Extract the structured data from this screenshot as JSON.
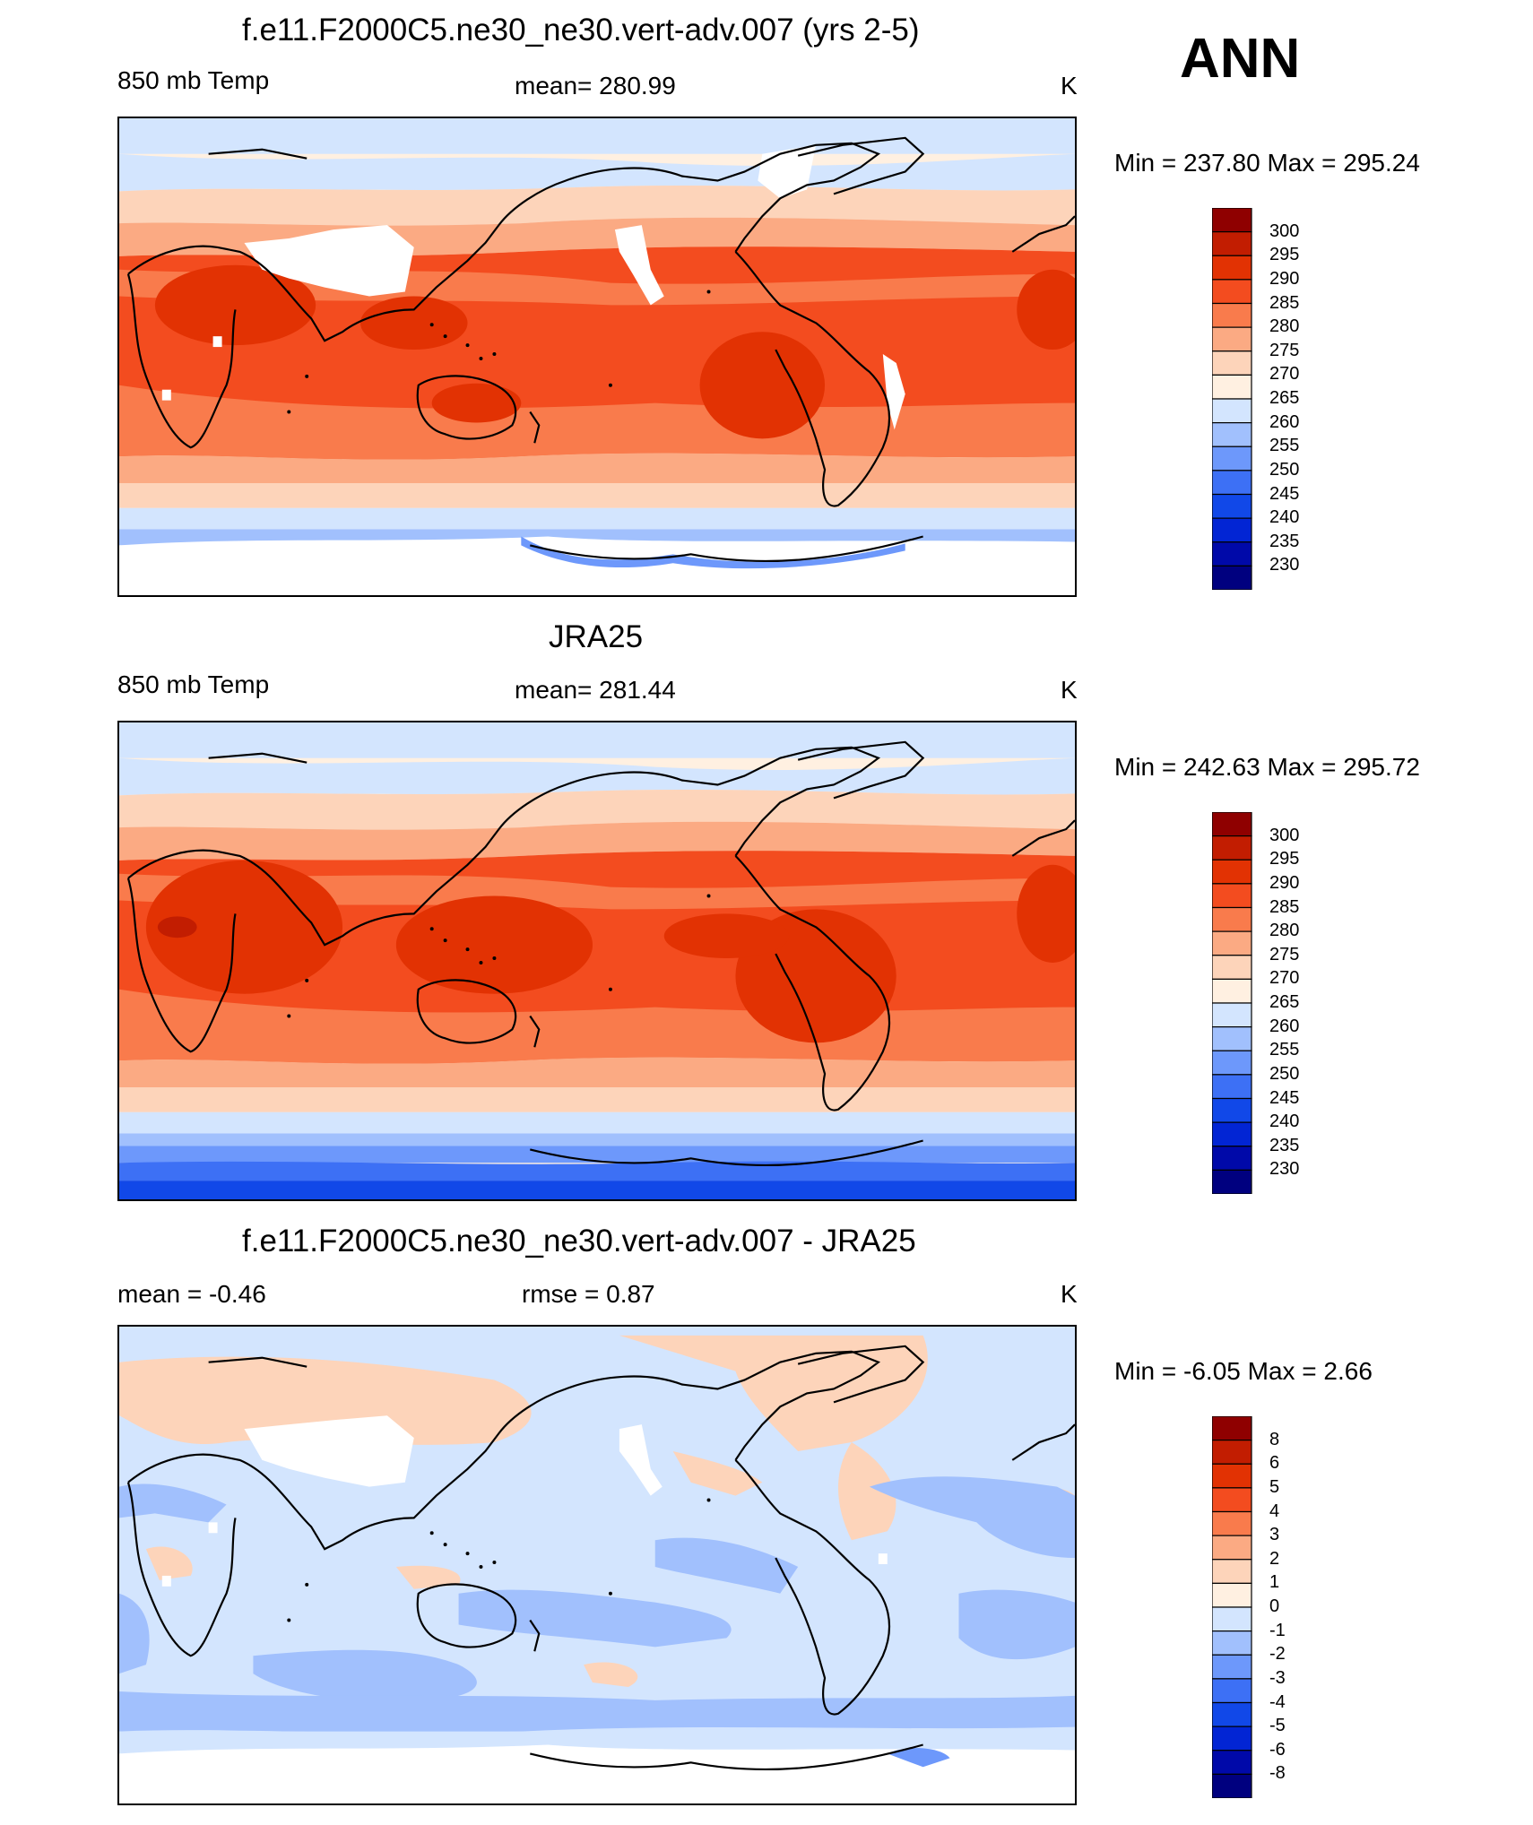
{
  "season": "ANN",
  "colors": {
    "abs_scale": [
      "#00007f",
      "#0009a9",
      "#0225d4",
      "#1148e8",
      "#3d70f5",
      "#6d98fb",
      "#a1c0fd",
      "#d3e5fe",
      "#fff0e1",
      "#fdd4ba",
      "#fbaa83",
      "#f97b4c",
      "#f34c1f",
      "#e23203",
      "#c21d01",
      "#8f0000"
    ],
    "diff_scale": [
      "#00007f",
      "#0009a9",
      "#0225d4",
      "#1148e8",
      "#3d70f5",
      "#6d98fb",
      "#a1c0fd",
      "#d3e5fe",
      "#fff0e1",
      "#fdd4ba",
      "#fbaa83",
      "#f97b4c",
      "#f34c1f",
      "#e23203",
      "#c21d01",
      "#8f0000"
    ],
    "missing": "#ffffff",
    "coast": "#000000"
  },
  "panels": [
    {
      "title": "f.e11.F2000C5.ne30_ne30.vert-adv.007 (yrs 2-5)",
      "left_label": "850 mb Temp",
      "center_label": "mean= 280.99",
      "right_label": "K",
      "minmax": "Min = 237.80 Max = 295.24",
      "ticks": [
        "300",
        "295",
        "290",
        "285",
        "280",
        "275",
        "270",
        "265",
        "260",
        "255",
        "250",
        "245",
        "240",
        "235",
        "230"
      ]
    },
    {
      "title": "JRA25",
      "left_label": "850 mb Temp",
      "center_label": "mean= 281.44",
      "right_label": "K",
      "minmax": "Min = 242.63 Max = 295.72",
      "ticks": [
        "300",
        "295",
        "290",
        "285",
        "280",
        "275",
        "270",
        "265",
        "260",
        "255",
        "250",
        "245",
        "240",
        "235",
        "230"
      ]
    },
    {
      "title": "f.e11.F2000C5.ne30_ne30.vert-adv.007 - JRA25",
      "left_label": "mean =  -0.46",
      "center_label": "rmse =   0.87",
      "right_label": "K",
      "minmax": "Min =  -6.05 Max =   2.66",
      "ticks": [
        "8",
        "6",
        "5",
        "4",
        "3",
        "2",
        "1",
        "0",
        "-1",
        "-2",
        "-3",
        "-4",
        "-5",
        "-6",
        "-8"
      ]
    }
  ]
}
